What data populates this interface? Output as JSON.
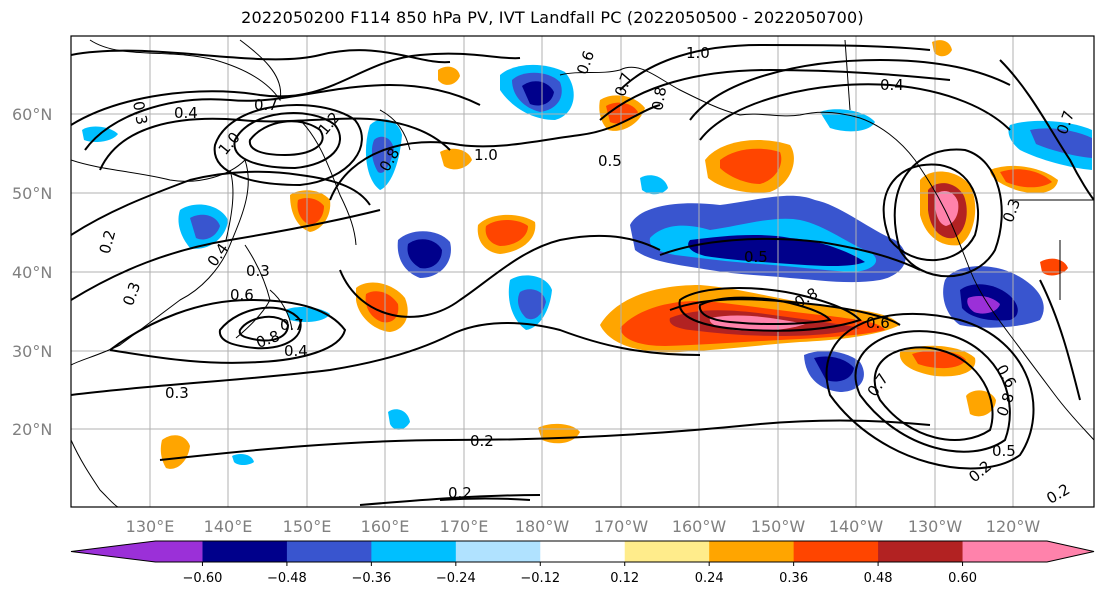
{
  "title": "2022050200 F114 850 hPa PV, IVT Landfall PC (2022050500 - 2022050700)",
  "lat_labels": [
    "60°N",
    "50°N",
    "40°N",
    "30°N",
    "20°N"
  ],
  "lon_labels": [
    "130°E",
    "140°E",
    "150°E",
    "160°E",
    "170°E",
    "180°W",
    "170°W",
    "160°W",
    "150°W",
    "140°W",
    "130°W",
    "120°W"
  ],
  "colorbar": {
    "colors": [
      "#9b30d8",
      "#00008b",
      "#3955cf",
      "#00bfff",
      "#b0e2ff",
      "#ffffff",
      "#ffec8b",
      "#ffa500",
      "#ff4500",
      "#b22222",
      "#ff82ab"
    ],
    "ticks": [
      "−0.60",
      "−0.48",
      "−0.36",
      "−0.24",
      "−0.12",
      "0.12",
      "0.24",
      "0.36",
      "0.48",
      "0.60"
    ]
  },
  "contour_labels": [
    "0.4",
    "0.3",
    "0.7",
    "1.0",
    "1.2",
    "0.8",
    "1.0",
    "0.2",
    "0.3",
    "0.4",
    "0.3",
    "0.6",
    "0.8",
    "0.7",
    "0.4",
    "0.3",
    "0.2",
    "0.5",
    "0.8",
    "0.7",
    "0.6",
    "0.5",
    "0.8",
    "1.0",
    "0.6",
    "0.4",
    "0.7",
    "0.6",
    "0.8",
    "0.5",
    "0.2",
    "0.2",
    "0.2",
    "0.3",
    "0.7"
  ]
}
